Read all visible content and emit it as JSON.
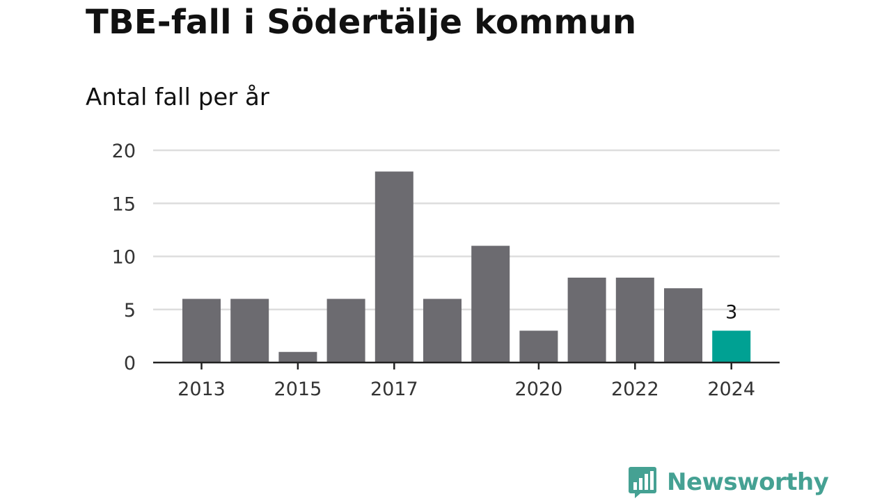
{
  "title": "TBE-fall i Södertälje kommun",
  "subtitle": "Antal fall per år",
  "brand": {
    "name": "Newsworthy"
  },
  "colors": {
    "bar": "#6c6b70",
    "highlight": "#00a193",
    "grid": "#dddddd",
    "axis": "#222222",
    "brand": "#45a193"
  },
  "chart_data": {
    "type": "bar",
    "title": "TBE-fall i Södertälje kommun",
    "subtitle": "Antal fall per år",
    "xlabel": "",
    "ylabel": "",
    "categories": [
      "2013",
      "2014",
      "2015",
      "2016",
      "2017",
      "2018",
      "2019",
      "2020",
      "2021",
      "2022",
      "2023",
      "2024"
    ],
    "values": [
      6,
      6,
      1,
      6,
      18,
      6,
      11,
      3,
      8,
      8,
      7,
      3
    ],
    "highlight_category": "2024",
    "data_labels": [
      {
        "category": "2024",
        "text": "3"
      }
    ],
    "x_tick_labels": [
      "2013",
      "2015",
      "2017",
      "2020",
      "2022",
      "2024"
    ],
    "y_ticks": [
      0,
      5,
      10,
      15,
      20
    ],
    "ylim": [
      0,
      20
    ],
    "grid": true,
    "legend": "none"
  }
}
